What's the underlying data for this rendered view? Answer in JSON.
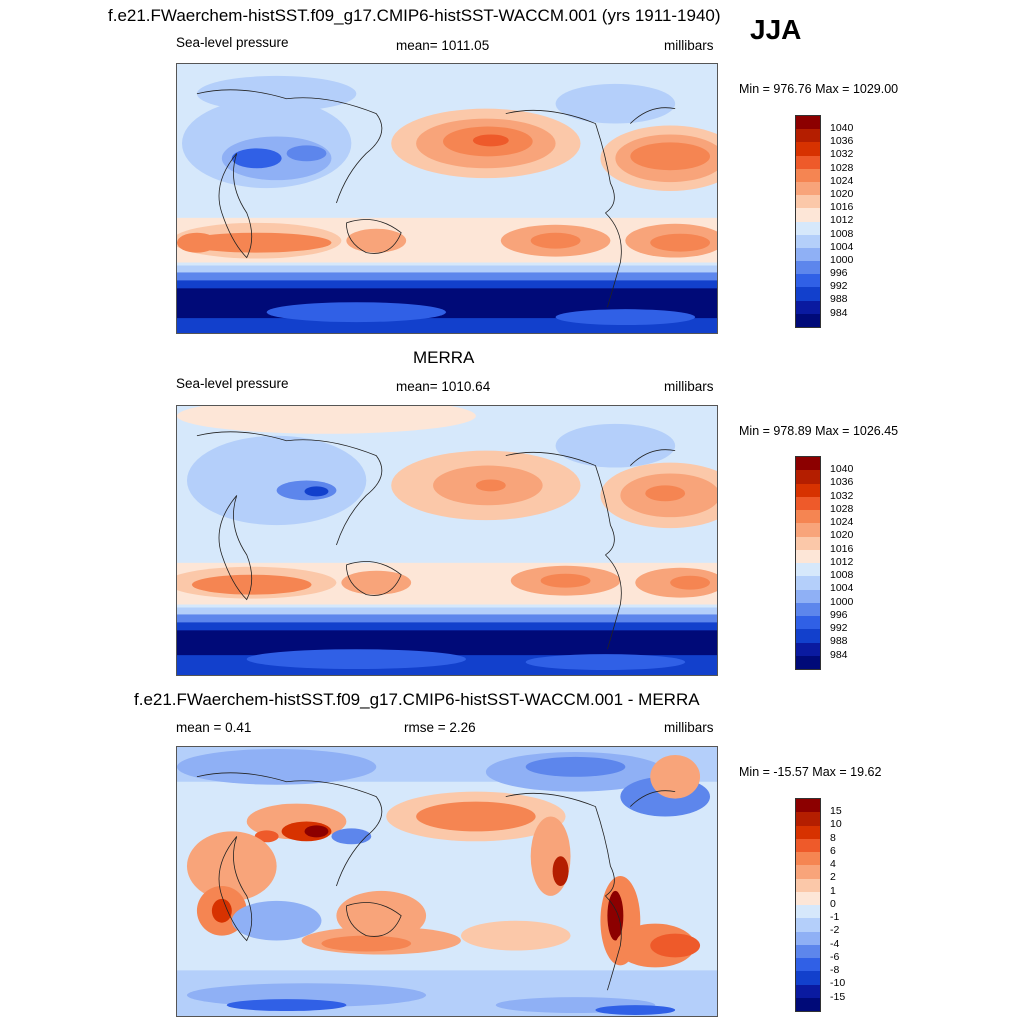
{
  "season": "JJA",
  "panels": [
    {
      "title": "f.e21.FWaerchem-histSST.f09_g17.CMIP6-histSST-WACCM.001 (yrs 1911-1940)",
      "left_label": "Sea-level pressure",
      "center_label": "mean= 1011.05",
      "right_label": "millibars",
      "minmax": "Min = 976.76 Max = 1029.00",
      "colorbar": {
        "labels": [
          "1040",
          "1036",
          "1032",
          "1028",
          "1024",
          "1020",
          "1016",
          "1012",
          "1008",
          "1004",
          "1000",
          "996",
          "992",
          "988",
          "984"
        ],
        "colors": [
          "#8c0000",
          "#b41e00",
          "#d73200",
          "#ee5a2a",
          "#f58552",
          "#f8a47a",
          "#fbc8a9",
          "#fde6d7",
          "#d6e8fb",
          "#b4cffa",
          "#8fb0f5",
          "#5d86ec",
          "#3060e6",
          "#1240cc",
          "#0a1aa0",
          "#000a78"
        ]
      }
    },
    {
      "title": "MERRA",
      "left_label": "Sea-level pressure",
      "center_label": "mean= 1010.64",
      "right_label": "millibars",
      "minmax": "Min = 978.89 Max = 1026.45",
      "colorbar": {
        "labels": [
          "1040",
          "1036",
          "1032",
          "1028",
          "1024",
          "1020",
          "1016",
          "1012",
          "1008",
          "1004",
          "1000",
          "996",
          "992",
          "988",
          "984"
        ],
        "colors": [
          "#8c0000",
          "#b41e00",
          "#d73200",
          "#ee5a2a",
          "#f58552",
          "#f8a47a",
          "#fbc8a9",
          "#fde6d7",
          "#d6e8fb",
          "#b4cffa",
          "#8fb0f5",
          "#5d86ec",
          "#3060e6",
          "#1240cc",
          "#0a1aa0",
          "#000a78"
        ]
      }
    },
    {
      "title": "f.e21.FWaerchem-histSST.f09_g17.CMIP6-histSST-WACCM.001 - MERRA",
      "left_label": "mean =   0.41",
      "center_label": "rmse =   2.26",
      "right_label": "millibars",
      "minmax": "Min = -15.57 Max =  19.62",
      "colorbar": {
        "labels": [
          "15",
          "10",
          "8",
          "6",
          "4",
          "2",
          "1",
          "0",
          "-1",
          "-2",
          "-4",
          "-6",
          "-8",
          "-10",
          "-15"
        ],
        "colors": [
          "#8c0000",
          "#b41e00",
          "#d73200",
          "#ee5a2a",
          "#f58552",
          "#f8a47a",
          "#fbc8a9",
          "#fde6d7",
          "#d6e8fb",
          "#b4cffa",
          "#8fb0f5",
          "#5d86ec",
          "#3060e6",
          "#1240cc",
          "#0a1aa0",
          "#000a78"
        ]
      }
    }
  ]
}
